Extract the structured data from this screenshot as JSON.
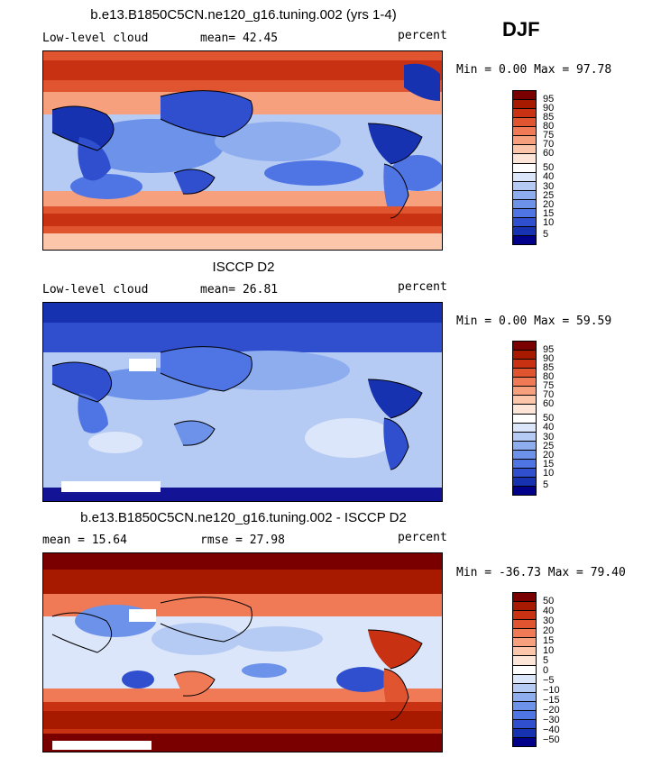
{
  "season": "DJF",
  "panels": [
    {
      "title": "b.e13.B1850C5CN.ne120_g16.tuning.002 (yrs 1-4)",
      "left_label": "Low-level cloud",
      "mid_label": "mean=  42.45",
      "right_label": "percent",
      "minmax": "Min =   0.00 Max =  97.78",
      "legend_ticks": [
        "95",
        "90",
        "85",
        "80",
        "75",
        "70",
        "60",
        "50",
        "40",
        "30",
        "25",
        "20",
        "15",
        "10",
        "5"
      ]
    },
    {
      "title": "ISCCP D2",
      "left_label": "Low-level cloud",
      "mid_label": "mean=  26.81",
      "right_label": "percent",
      "minmax": "Min =   0.00 Max =  59.59",
      "legend_ticks": [
        "95",
        "90",
        "85",
        "80",
        "75",
        "70",
        "60",
        "50",
        "40",
        "30",
        "25",
        "20",
        "15",
        "10",
        "5"
      ]
    },
    {
      "title": "b.e13.B1850C5CN.ne120_g16.tuning.002 - ISCCP D2",
      "left_label": "mean =  15.64",
      "mid_label": "rmse =  27.98",
      "right_label": "percent",
      "minmax": "Min = -36.73 Max =  79.40",
      "legend_ticks": [
        "50",
        "40",
        "30",
        "20",
        "15",
        "10",
        "5",
        "0",
        "−5",
        "−10",
        "−15",
        "−20",
        "−30",
        "−40",
        "−50"
      ]
    }
  ],
  "colorbar_colors": [
    "#7a0000",
    "#a81a00",
    "#c83212",
    "#e05530",
    "#f07a55",
    "#f7a07e",
    "#fcc6aa",
    "#fde6d8",
    "#ffffff",
    "#dce6fa",
    "#b6cbf3",
    "#8eadee",
    "#6d92ea",
    "#4f74e3",
    "#2f4fcf",
    "#1632b0",
    "#00008b"
  ]
}
